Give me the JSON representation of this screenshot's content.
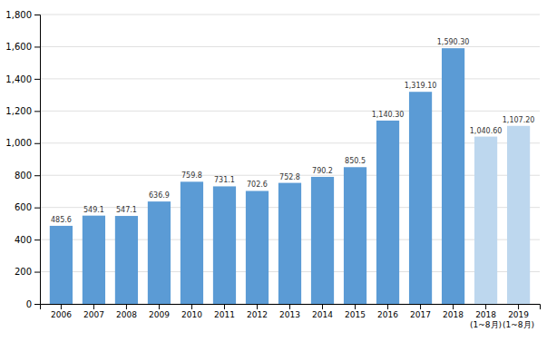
{
  "chart_data": {
    "type": "bar",
    "categories": [
      "2006",
      "2007",
      "2008",
      "2009",
      "2010",
      "2011",
      "2012",
      "2013",
      "2014",
      "2015",
      "2016",
      "2017",
      "2018",
      "2018\n(1~8月)",
      "2019\n(1~8月)"
    ],
    "values": [
      485.6,
      549.1,
      547.1,
      636.9,
      759.8,
      731.1,
      702.6,
      752.8,
      790.2,
      850.5,
      1140.3,
      1319.1,
      1590.3,
      1040.6,
      1107.2
    ],
    "value_labels": [
      "485.6",
      "549.1",
      "547.1",
      "636.9",
      "759.8",
      "731.1",
      "702.6",
      "752.8",
      "790.2",
      "850.5",
      "1,140.30",
      "1,319.10",
      "1,590.30",
      "1,040.60",
      "1,107.20"
    ],
    "colors": [
      "#5B9BD5",
      "#5B9BD5",
      "#5B9BD5",
      "#5B9BD5",
      "#5B9BD5",
      "#5B9BD5",
      "#5B9BD5",
      "#5B9BD5",
      "#5B9BD5",
      "#5B9BD5",
      "#5B9BD5",
      "#5B9BD5",
      "#5B9BD5",
      "#BDD7EE",
      "#BDD7EE"
    ],
    "ylim": [
      0,
      1800
    ],
    "yticks": [
      0,
      200,
      400,
      600,
      800,
      {
        "value": 1000,
        "label": "1,000"
      },
      {
        "value": 1200,
        "label": "1,200"
      },
      {
        "value": 1400,
        "label": "1,400"
      },
      {
        "value": 1600,
        "label": "1,600"
      },
      {
        "value": 1800,
        "label": "1,800"
      }
    ],
    "grid": true,
    "data_labels": true
  }
}
